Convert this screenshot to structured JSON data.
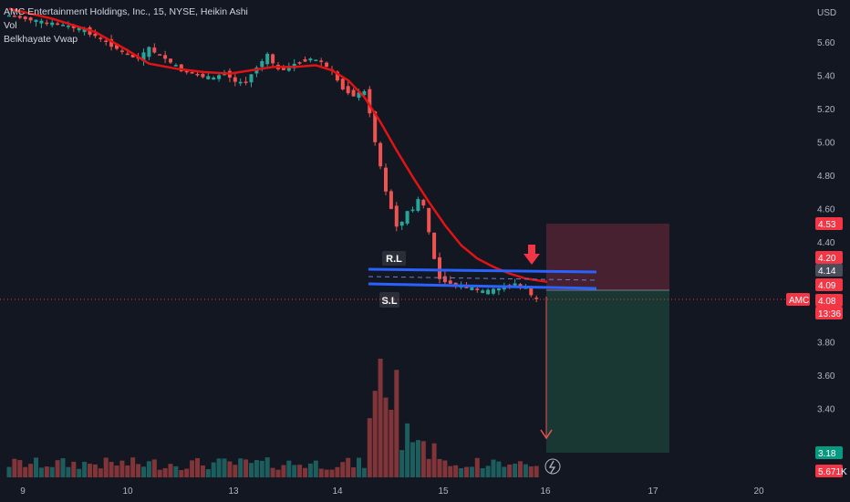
{
  "legend": {
    "symbol_line": "AMC Entertainment Holdings, Inc., 15, NYSE, Heikin Ashi",
    "vol_label": "Vol",
    "indicator_label": "Belkhayate Vwap"
  },
  "chart_data": {
    "type": "candlestick",
    "symbol": "AMC",
    "interval": "15",
    "exchange": "NYSE",
    "style": "Heikin Ashi",
    "currency": "USD",
    "y_ticks": [
      "5.60",
      "5.40",
      "5.20",
      "5.00",
      "4.80",
      "4.60",
      "4.40",
      "3.80",
      "3.60",
      "3.40"
    ],
    "x_ticks": [
      "9",
      "10",
      "13",
      "14",
      "15",
      "16",
      "17",
      "20"
    ],
    "ylim": [
      3.18,
      5.8
    ],
    "grid": false,
    "vwap_line": [
      [
        0,
        5.8
      ],
      [
        8,
        5.74
      ],
      [
        16,
        5.66
      ],
      [
        22,
        5.55
      ],
      [
        26,
        5.47
      ],
      [
        31,
        5.44
      ],
      [
        36,
        5.42
      ],
      [
        41,
        5.41
      ],
      [
        45,
        5.43
      ],
      [
        49,
        5.45
      ],
      [
        53,
        5.45
      ],
      [
        57,
        5.46
      ],
      [
        60,
        5.43
      ],
      [
        63,
        5.37
      ],
      [
        66,
        5.27
      ],
      [
        69,
        5.12
      ],
      [
        72,
        4.95
      ],
      [
        75,
        4.79
      ],
      [
        78,
        4.64
      ],
      [
        81,
        4.5
      ],
      [
        84,
        4.38
      ],
      [
        87,
        4.3
      ],
      [
        90,
        4.25
      ],
      [
        93,
        4.21
      ],
      [
        96,
        4.18
      ],
      [
        98,
        4.17
      ],
      [
        100,
        4.16
      ]
    ],
    "candles_shown": "Heikin Ashi candles from session 9 through the current bar on 16",
    "price_labels": [
      {
        "value": "4.53",
        "color": "#f23645"
      },
      {
        "value": "4.20",
        "color": "#f23645"
      },
      {
        "value": "4.14",
        "color": "#4a4e5a"
      },
      {
        "value": "4.09",
        "color": "#f23645"
      },
      {
        "value": "AMC",
        "color": "#f23645"
      },
      {
        "value": "4.08",
        "color": "#f23645"
      },
      {
        "value": "13:36",
        "color": "#f23645"
      },
      {
        "value": "3.18",
        "color": "#089981"
      },
      {
        "value": "5.671K",
        "color": "#f23645"
      }
    ],
    "annotations": [
      {
        "text": "R.L",
        "kind": "resistance",
        "color": "#2962ff"
      },
      {
        "text": "S.L",
        "kind": "support",
        "color": "#2962ff"
      }
    ],
    "position": {
      "entry": 4.08,
      "stop": 4.53,
      "target": 3.18
    }
  },
  "colors": {
    "background": "#131722",
    "up": "#26a69a",
    "down": "#ef5350",
    "vwap": "#e01414",
    "levels": "#2962ff",
    "stop_zone": "#4a2230",
    "target_zone": "#193a36"
  }
}
